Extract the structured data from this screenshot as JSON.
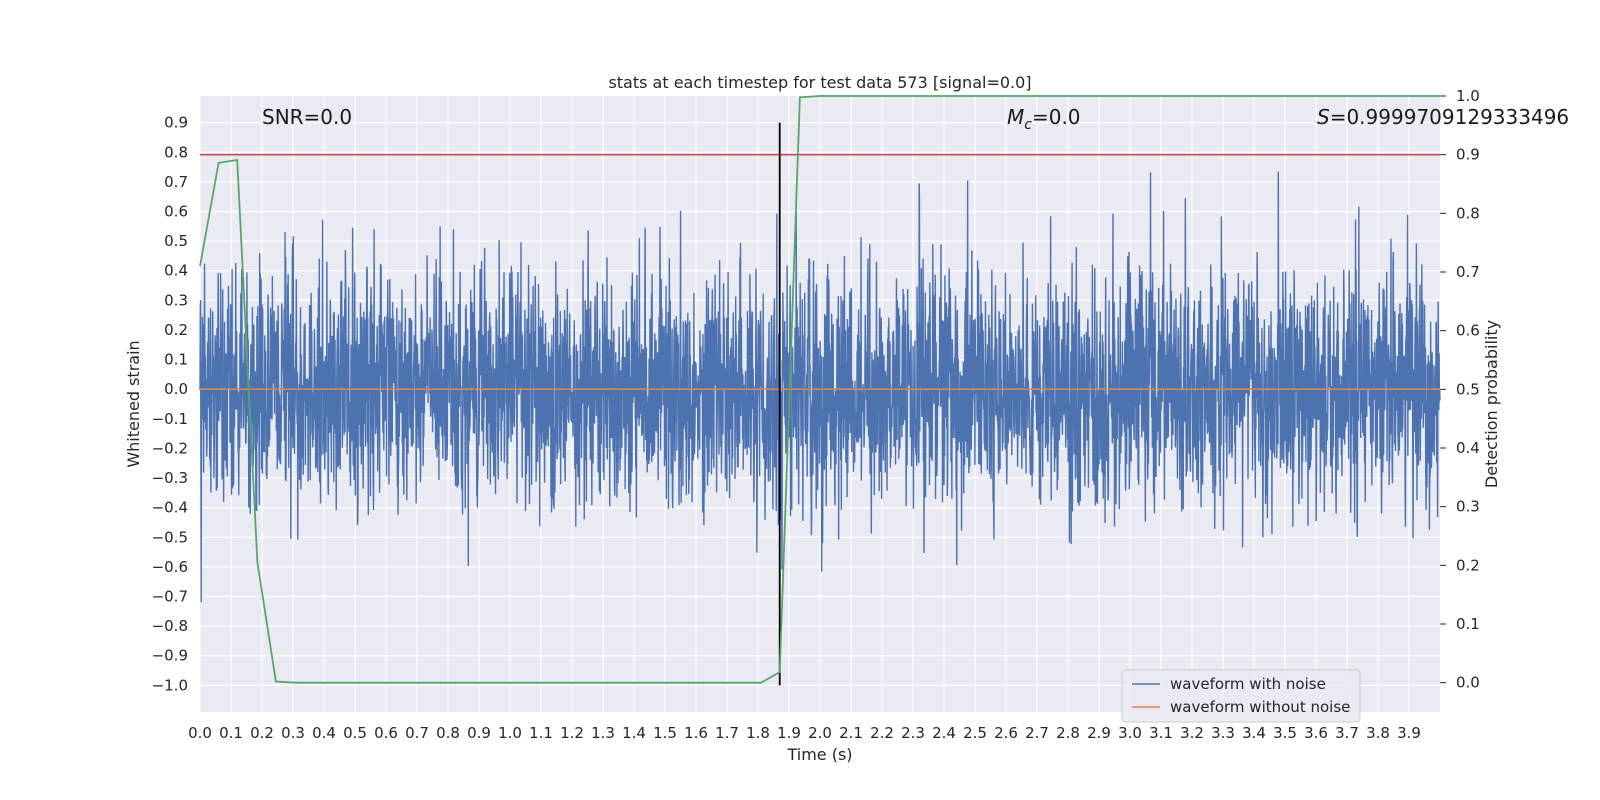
{
  "chart_data": {
    "type": "line",
    "title": "stats at each timestep for test data 573 [signal=0.0]",
    "xlabel": "Time (s)",
    "ylabel": "Whitened strain",
    "y2label": "Detection probability",
    "xlim": [
      0.0,
      4.0
    ],
    "ylim": [
      -1.09,
      0.99
    ],
    "y2lim": [
      -0.05,
      1.0
    ],
    "x_ticks": [
      0.0,
      0.1,
      0.2,
      0.3,
      0.4,
      0.5,
      0.6,
      0.7,
      0.8,
      0.9,
      1.0,
      1.1,
      1.2,
      1.3,
      1.4,
      1.5,
      1.6,
      1.7,
      1.8,
      1.9,
      2.0,
      2.1,
      2.2,
      2.3,
      2.4,
      2.5,
      2.6,
      2.7,
      2.8,
      2.9,
      3.0,
      3.1,
      3.2,
      3.3,
      3.4,
      3.5,
      3.6,
      3.7,
      3.8,
      3.9
    ],
    "y_ticks": [
      0.9,
      0.8,
      0.7,
      0.6,
      0.5,
      0.4,
      0.3,
      0.2,
      0.1,
      0.0,
      -0.1,
      -0.2,
      -0.3,
      -0.4,
      -0.5,
      -0.6,
      -0.7,
      -0.8,
      -0.9,
      -1.0
    ],
    "y2_ticks": [
      1.0,
      0.9,
      0.8,
      0.7,
      0.6,
      0.5,
      0.4,
      0.3,
      0.2,
      0.1,
      0.0
    ],
    "grid": true,
    "legend_position": "lower-right",
    "annotations": {
      "snr": "SNR=0.0",
      "mc_symbol": "M",
      "mc_sub": "c",
      "mc_value": "=0.0",
      "s_symbol": "S",
      "s_value": "=0.9999709129333496"
    },
    "vertical_marker_x": 1.87,
    "threshold_y2": 0.9,
    "series": [
      {
        "name": "waveform with noise",
        "color": "#4c72b0",
        "axis": "left",
        "kind": "noise",
        "samples": 4096,
        "amplitude_range": [
          -0.97,
          0.9
        ]
      },
      {
        "name": "waveform without noise",
        "color": "#dd8452",
        "axis": "left",
        "x": [
          0.0,
          4.0
        ],
        "y": [
          0.0,
          0.0
        ]
      },
      {
        "name": "detection probability",
        "color": "#55a868",
        "axis": "right",
        "x": [
          0.0,
          0.06,
          0.12,
          0.185,
          0.245,
          0.31,
          1.81,
          1.87,
          1.935,
          2.0,
          4.0
        ],
        "y": [
          0.71,
          0.886,
          0.891,
          0.205,
          0.002,
          0.0,
          0.0,
          0.018,
          0.998,
          1.0,
          1.0
        ]
      }
    ],
    "threshold_color": "#c44e52",
    "marker_color": "#000000"
  }
}
